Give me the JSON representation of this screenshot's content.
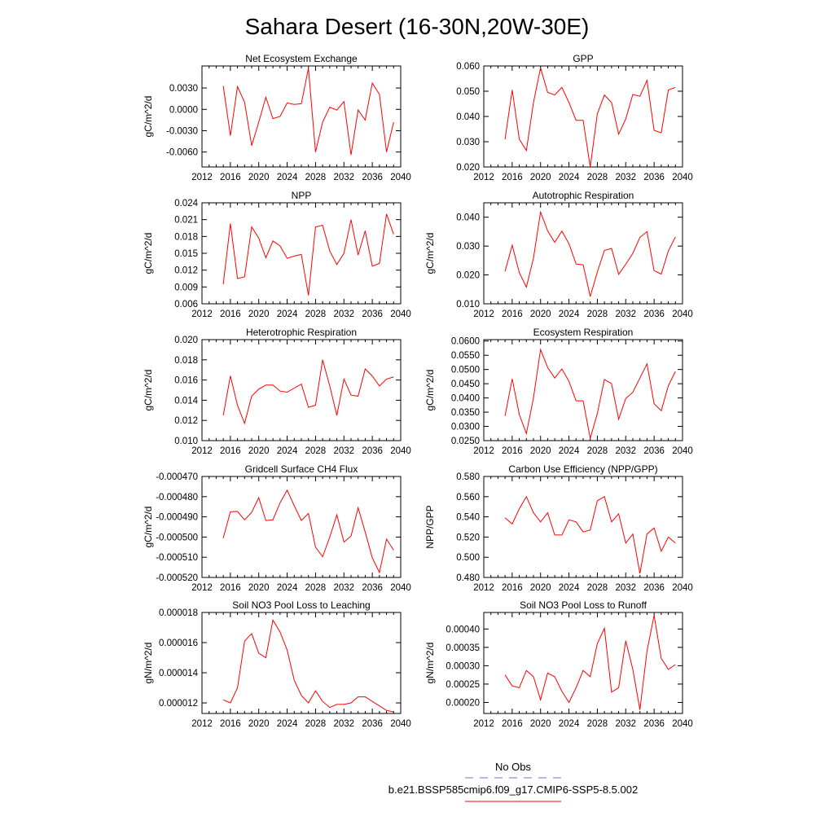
{
  "title": "Sahara Desert (16-30N,20W-30E)",
  "series_color": "#ff0000",
  "chart_data": [
    {
      "type": "line",
      "title": "Net Ecosystem Exchange",
      "ylabel": "gC/m^2/d",
      "xlim": [
        2012,
        2040
      ],
      "xticks": [
        "2012",
        "2016",
        "2020",
        "2024",
        "2028",
        "2032",
        "2036",
        "2040"
      ],
      "ylim": [
        -0.0081,
        0.0061
      ],
      "yticks": [
        "0.0030",
        "0.0000",
        "-0.0030",
        "-0.0060"
      ],
      "ytick_values": [
        0.003,
        0.0,
        -0.003,
        -0.006
      ],
      "x": [
        2015,
        2016,
        2017,
        2018,
        2019,
        2020,
        2021,
        2022,
        2023,
        2024,
        2025,
        2026,
        2027,
        2028,
        2029,
        2030,
        2031,
        2032,
        2033,
        2034,
        2035,
        2036,
        2037,
        2038,
        2039
      ],
      "values": [
        0.0033,
        -0.0037,
        0.0032,
        0.001,
        -0.0051,
        -0.0018,
        0.0017,
        -0.0013,
        -0.001,
        0.0009,
        0.0007,
        0.0008,
        0.0058,
        -0.006,
        -0.0018,
        0.0003,
        -0.0001,
        0.0011,
        -0.0064,
        -0.0001,
        -0.0015,
        0.0037,
        0.0021,
        -0.006,
        -0.0018
      ]
    },
    {
      "type": "line",
      "title": "GPP",
      "ylabel": "",
      "xlim": [
        2012,
        2040
      ],
      "xticks": [
        "2012",
        "2016",
        "2020",
        "2024",
        "2028",
        "2032",
        "2036",
        "2040"
      ],
      "ylim": [
        0.02,
        0.06
      ],
      "yticks": [
        "0.060",
        "0.050",
        "0.040",
        "0.030",
        "0.020"
      ],
      "ytick_values": [
        0.06,
        0.05,
        0.04,
        0.03,
        0.02
      ],
      "x": [
        2015,
        2016,
        2017,
        2018,
        2019,
        2020,
        2021,
        2022,
        2023,
        2024,
        2025,
        2026,
        2027,
        2028,
        2029,
        2030,
        2031,
        2032,
        2033,
        2034,
        2035,
        2036,
        2037,
        2038,
        2039
      ],
      "values": [
        0.031,
        0.0505,
        0.031,
        0.0265,
        0.0455,
        0.0593,
        0.0495,
        0.0485,
        0.0515,
        0.0455,
        0.0385,
        0.0385,
        0.02,
        0.041,
        0.0485,
        0.0455,
        0.033,
        0.039,
        0.0487,
        0.048,
        0.0543,
        0.0345,
        0.0335,
        0.0505,
        0.0515
      ]
    },
    {
      "type": "line",
      "title": "NPP",
      "ylabel": "gC/m^2/d",
      "xlim": [
        2012,
        2040
      ],
      "xticks": [
        "2012",
        "2016",
        "2020",
        "2024",
        "2028",
        "2032",
        "2036",
        "2040"
      ],
      "ylim": [
        0.006,
        0.024
      ],
      "yticks": [
        "0.024",
        "0.021",
        "0.018",
        "0.015",
        "0.012",
        "0.009",
        "0.006"
      ],
      "ytick_values": [
        0.024,
        0.021,
        0.018,
        0.015,
        0.012,
        0.009,
        0.006
      ],
      "x": [
        2015,
        2016,
        2017,
        2018,
        2019,
        2020,
        2021,
        2022,
        2023,
        2024,
        2025,
        2026,
        2027,
        2028,
        2029,
        2030,
        2031,
        2032,
        2033,
        2034,
        2035,
        2036,
        2037,
        2038,
        2039
      ],
      "values": [
        0.0095,
        0.0203,
        0.0105,
        0.0108,
        0.0197,
        0.0177,
        0.0142,
        0.0172,
        0.0163,
        0.0141,
        0.0145,
        0.0148,
        0.0075,
        0.0197,
        0.02,
        0.0154,
        0.013,
        0.015,
        0.021,
        0.0147,
        0.019,
        0.0127,
        0.0132,
        0.022,
        0.0184
      ]
    },
    {
      "type": "line",
      "title": "Autotrophic Respiration",
      "ylabel": "gC/m^2/d",
      "xlim": [
        2012,
        2040
      ],
      "xticks": [
        "2012",
        "2016",
        "2020",
        "2024",
        "2028",
        "2032",
        "2036",
        "2040"
      ],
      "ylim": [
        0.01,
        0.045
      ],
      "yticks": [
        "0.040",
        "0.030",
        "0.020",
        "0.010"
      ],
      "ytick_values": [
        0.04,
        0.03,
        0.02,
        0.01
      ],
      "x": [
        2015,
        2016,
        2017,
        2018,
        2019,
        2020,
        2021,
        2022,
        2023,
        2024,
        2025,
        2026,
        2027,
        2028,
        2029,
        2030,
        2031,
        2032,
        2033,
        2034,
        2035,
        2036,
        2037,
        2038,
        2039
      ],
      "values": [
        0.0212,
        0.0303,
        0.0208,
        0.0158,
        0.0258,
        0.0418,
        0.0353,
        0.0313,
        0.0352,
        0.0308,
        0.0238,
        0.0235,
        0.0125,
        0.021,
        0.0285,
        0.0292,
        0.0202,
        0.0237,
        0.0275,
        0.033,
        0.035,
        0.0215,
        0.0203,
        0.0283,
        0.0332
      ]
    },
    {
      "type": "line",
      "title": "Heterotrophic Respiration",
      "ylabel": "gC/m^2/d",
      "xlim": [
        2012,
        2040
      ],
      "xticks": [
        "2012",
        "2016",
        "2020",
        "2024",
        "2028",
        "2032",
        "2036",
        "2040"
      ],
      "ylim": [
        0.01,
        0.02
      ],
      "yticks": [
        "0.020",
        "0.018",
        "0.016",
        "0.014",
        "0.012",
        "0.010"
      ],
      "ytick_values": [
        0.02,
        0.018,
        0.016,
        0.014,
        0.012,
        0.01
      ],
      "x": [
        2015,
        2016,
        2017,
        2018,
        2019,
        2020,
        2021,
        2022,
        2023,
        2024,
        2025,
        2026,
        2027,
        2028,
        2029,
        2030,
        2031,
        2032,
        2033,
        2034,
        2035,
        2036,
        2037,
        2038,
        2039
      ],
      "values": [
        0.0125,
        0.0164,
        0.0135,
        0.0117,
        0.0144,
        0.0151,
        0.0155,
        0.0155,
        0.0149,
        0.0148,
        0.0152,
        0.0156,
        0.0133,
        0.0135,
        0.018,
        0.0154,
        0.0125,
        0.0161,
        0.0145,
        0.0144,
        0.0171,
        0.0164,
        0.0154,
        0.0161,
        0.0163
      ]
    },
    {
      "type": "line",
      "title": "Ecosystem Respiration",
      "ylabel": "gC/m^2/d",
      "xlim": [
        2012,
        2040
      ],
      "xticks": [
        "2012",
        "2016",
        "2020",
        "2024",
        "2028",
        "2032",
        "2036",
        "2040"
      ],
      "ylim": [
        0.025,
        0.0605
      ],
      "yticks": [
        "0.0600",
        "0.0550",
        "0.0500",
        "0.0450",
        "0.0400",
        "0.0350",
        "0.0300",
        "0.0250"
      ],
      "ytick_values": [
        0.06,
        0.055,
        0.05,
        0.045,
        0.04,
        0.035,
        0.03,
        0.025
      ],
      "x": [
        2015,
        2016,
        2017,
        2018,
        2019,
        2020,
        2021,
        2022,
        2023,
        2024,
        2025,
        2026,
        2027,
        2028,
        2029,
        2030,
        2031,
        2032,
        2033,
        2034,
        2035,
        2036,
        2037,
        2038,
        2039
      ],
      "values": [
        0.0337,
        0.0467,
        0.0342,
        0.0275,
        0.04,
        0.057,
        0.0507,
        0.047,
        0.0502,
        0.0458,
        0.039,
        0.039,
        0.0258,
        0.0345,
        0.0465,
        0.045,
        0.0325,
        0.0398,
        0.042,
        0.047,
        0.052,
        0.038,
        0.0355,
        0.0443,
        0.0493
      ]
    },
    {
      "type": "line",
      "title": "Gridcell Surface CH4 Flux",
      "ylabel": "gC/m^2/d",
      "xlim": [
        2012,
        2040
      ],
      "xticks": [
        "2012",
        "2016",
        "2020",
        "2024",
        "2028",
        "2032",
        "2036",
        "2040"
      ],
      "ylim": [
        -0.00052,
        -0.00047
      ],
      "yticks": [
        "-0.000470",
        "-0.000480",
        "-0.000490",
        "-0.000500",
        "-0.000510",
        "-0.000520"
      ],
      "ytick_values": [
        -0.00047,
        -0.00048,
        -0.00049,
        -0.0005,
        -0.00051,
        -0.00052
      ],
      "x": [
        2015,
        2016,
        2017,
        2018,
        2019,
        2020,
        2021,
        2022,
        2023,
        2024,
        2025,
        2026,
        2027,
        2028,
        2029,
        2030,
        2031,
        2032,
        2033,
        2034,
        2035,
        2036,
        2037,
        2038,
        2039
      ],
      "values": [
        -0.0005005,
        -0.0004875,
        -0.0004873,
        -0.0004915,
        -0.0004878,
        -0.0004805,
        -0.0004918,
        -0.0004915,
        -0.000483,
        -0.0004768,
        -0.0004845,
        -0.0004918,
        -0.0004883,
        -0.000505,
        -0.0005097,
        -0.0005,
        -0.000489,
        -0.0005025,
        -0.0004995,
        -0.0004855,
        -0.0004975,
        -0.0005103,
        -0.0005175,
        -0.000501,
        -0.0005065
      ]
    },
    {
      "type": "line",
      "title": "Carbon Use Efficiency (NPP/GPP)",
      "ylabel": "NPP/GPP",
      "xlim": [
        2012,
        2040
      ],
      "xticks": [
        "2012",
        "2016",
        "2020",
        "2024",
        "2028",
        "2032",
        "2036",
        "2040"
      ],
      "ylim": [
        0.48,
        0.58
      ],
      "yticks": [
        "0.580",
        "0.560",
        "0.540",
        "0.520",
        "0.500",
        "0.480"
      ],
      "ytick_values": [
        0.58,
        0.56,
        0.54,
        0.52,
        0.5,
        0.48
      ],
      "x": [
        2015,
        2016,
        2017,
        2018,
        2019,
        2020,
        2021,
        2022,
        2023,
        2024,
        2025,
        2026,
        2027,
        2028,
        2029,
        2030,
        2031,
        2032,
        2033,
        2034,
        2035,
        2036,
        2037,
        2038,
        2039
      ],
      "values": [
        0.539,
        0.533,
        0.548,
        0.56,
        0.544,
        0.535,
        0.544,
        0.522,
        0.522,
        0.537,
        0.535,
        0.525,
        0.527,
        0.556,
        0.56,
        0.535,
        0.543,
        0.514,
        0.523,
        0.484,
        0.523,
        0.529,
        0.506,
        0.52,
        0.514
      ]
    },
    {
      "type": "line",
      "title": "Soil NO3 Pool Loss to Leaching",
      "ylabel": "gN/m^2/d",
      "xlim": [
        2012,
        2040
      ],
      "xticks": [
        "2012",
        "2016",
        "2020",
        "2024",
        "2028",
        "2032",
        "2036",
        "2040"
      ],
      "ylim": [
        1.13e-05,
        1.8e-05
      ],
      "yticks": [
        "0.000018",
        "0.000016",
        "0.000014",
        "0.000012"
      ],
      "ytick_values": [
        1.8e-05,
        1.6e-05,
        1.4e-05,
        1.2e-05
      ],
      "x": [
        2015,
        2016,
        2017,
        2018,
        2019,
        2020,
        2021,
        2022,
        2023,
        2024,
        2025,
        2026,
        2027,
        2028,
        2029,
        2030,
        2031,
        2032,
        2033,
        2034,
        2035,
        2036,
        2037,
        2038,
        2039
      ],
      "values": [
        1.22e-05,
        1.2e-05,
        1.3e-05,
        1.61e-05,
        1.66e-05,
        1.53e-05,
        1.5e-05,
        1.75e-05,
        1.67e-05,
        1.55e-05,
        1.35e-05,
        1.25e-05,
        1.2e-05,
        1.28e-05,
        1.21e-05,
        1.17e-05,
        1.19e-05,
        1.19e-05,
        1.2e-05,
        1.24e-05,
        1.24e-05,
        1.21e-05,
        1.18e-05,
        1.15e-05,
        1.14e-05
      ]
    },
    {
      "type": "line",
      "title": "Soil NO3 Pool Loss to Runoff",
      "ylabel": "gN/m^2/d",
      "xlim": [
        2012,
        2040
      ],
      "xticks": [
        "2012",
        "2016",
        "2020",
        "2024",
        "2028",
        "2032",
        "2036",
        "2040"
      ],
      "ylim": [
        0.00017,
        0.000445
      ],
      "yticks": [
        "0.00040",
        "0.00035",
        "0.00030",
        "0.00025",
        "0.00020"
      ],
      "ytick_values": [
        0.0004,
        0.00035,
        0.0003,
        0.00025,
        0.0002
      ],
      "x": [
        2015,
        2016,
        2017,
        2018,
        2019,
        2020,
        2021,
        2022,
        2023,
        2024,
        2025,
        2026,
        2027,
        2028,
        2029,
        2030,
        2031,
        2032,
        2033,
        2034,
        2035,
        2036,
        2037,
        2038,
        2039
      ],
      "values": [
        0.000275,
        0.000245,
        0.00024,
        0.000287,
        0.00027,
        0.000207,
        0.00028,
        0.00027,
        0.00023,
        0.0002,
        0.00024,
        0.000287,
        0.00027,
        0.00036,
        0.000402,
        0.000228,
        0.00024,
        0.000368,
        0.00029,
        0.00018,
        0.00034,
        0.000437,
        0.00032,
        0.00029,
        0.000303
      ]
    }
  ],
  "legend": {
    "items": [
      {
        "label": "No Obs",
        "color": "#6d6de0",
        "dash": "dashed"
      },
      {
        "label": "b.e21.BSSP585cmip6.f09_g17.CMIP6-SSP5-8.5.002",
        "color": "#ff0000",
        "dash": "solid"
      }
    ]
  }
}
